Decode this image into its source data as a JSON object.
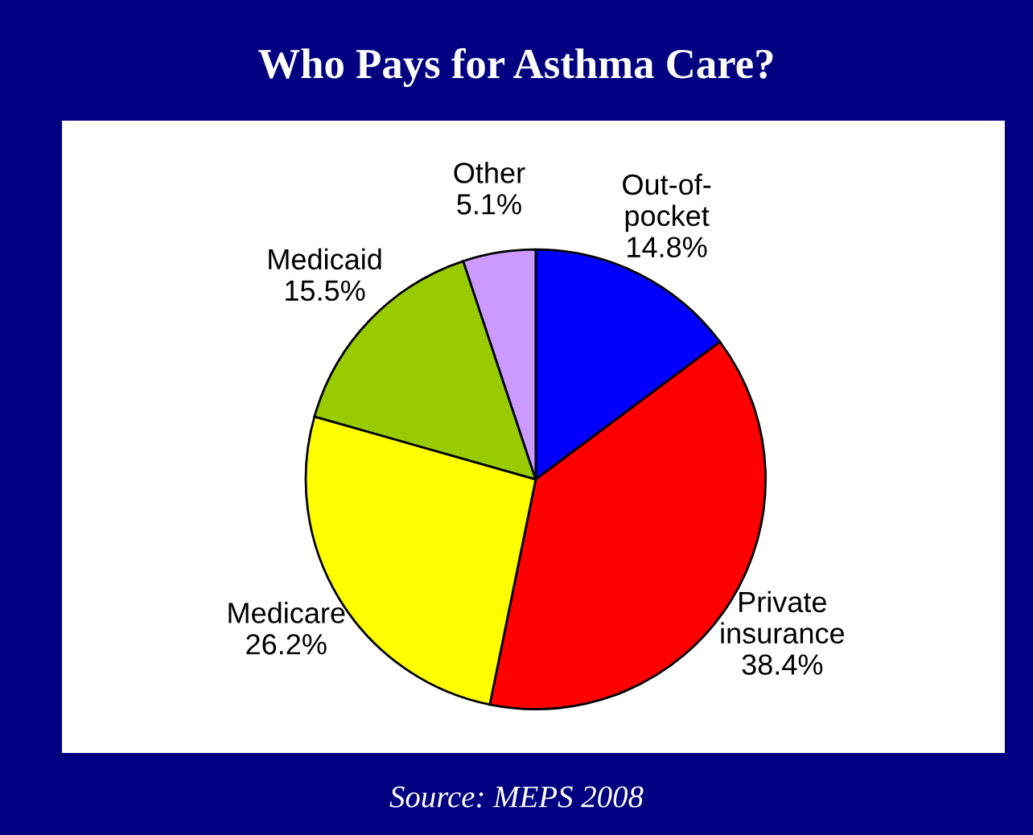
{
  "chart_data": {
    "type": "pie",
    "title": "Who Pays for Asthma Care?",
    "categories": [
      "Out-of-\npocket",
      "Private\ninsurance",
      "Medicare",
      "Medicaid",
      "Other"
    ],
    "values": [
      14.8,
      38.4,
      26.2,
      15.5,
      5.1
    ],
    "colors": [
      "#0000ff",
      "#ff0000",
      "#ffff00",
      "#99cc00",
      "#cc99ff"
    ],
    "value_labels": [
      "14.8%",
      "38.4%",
      "26.2%",
      "15.5%",
      "5.1%"
    ],
    "annotations": [
      "Source: MEPS 2008"
    ]
  }
}
